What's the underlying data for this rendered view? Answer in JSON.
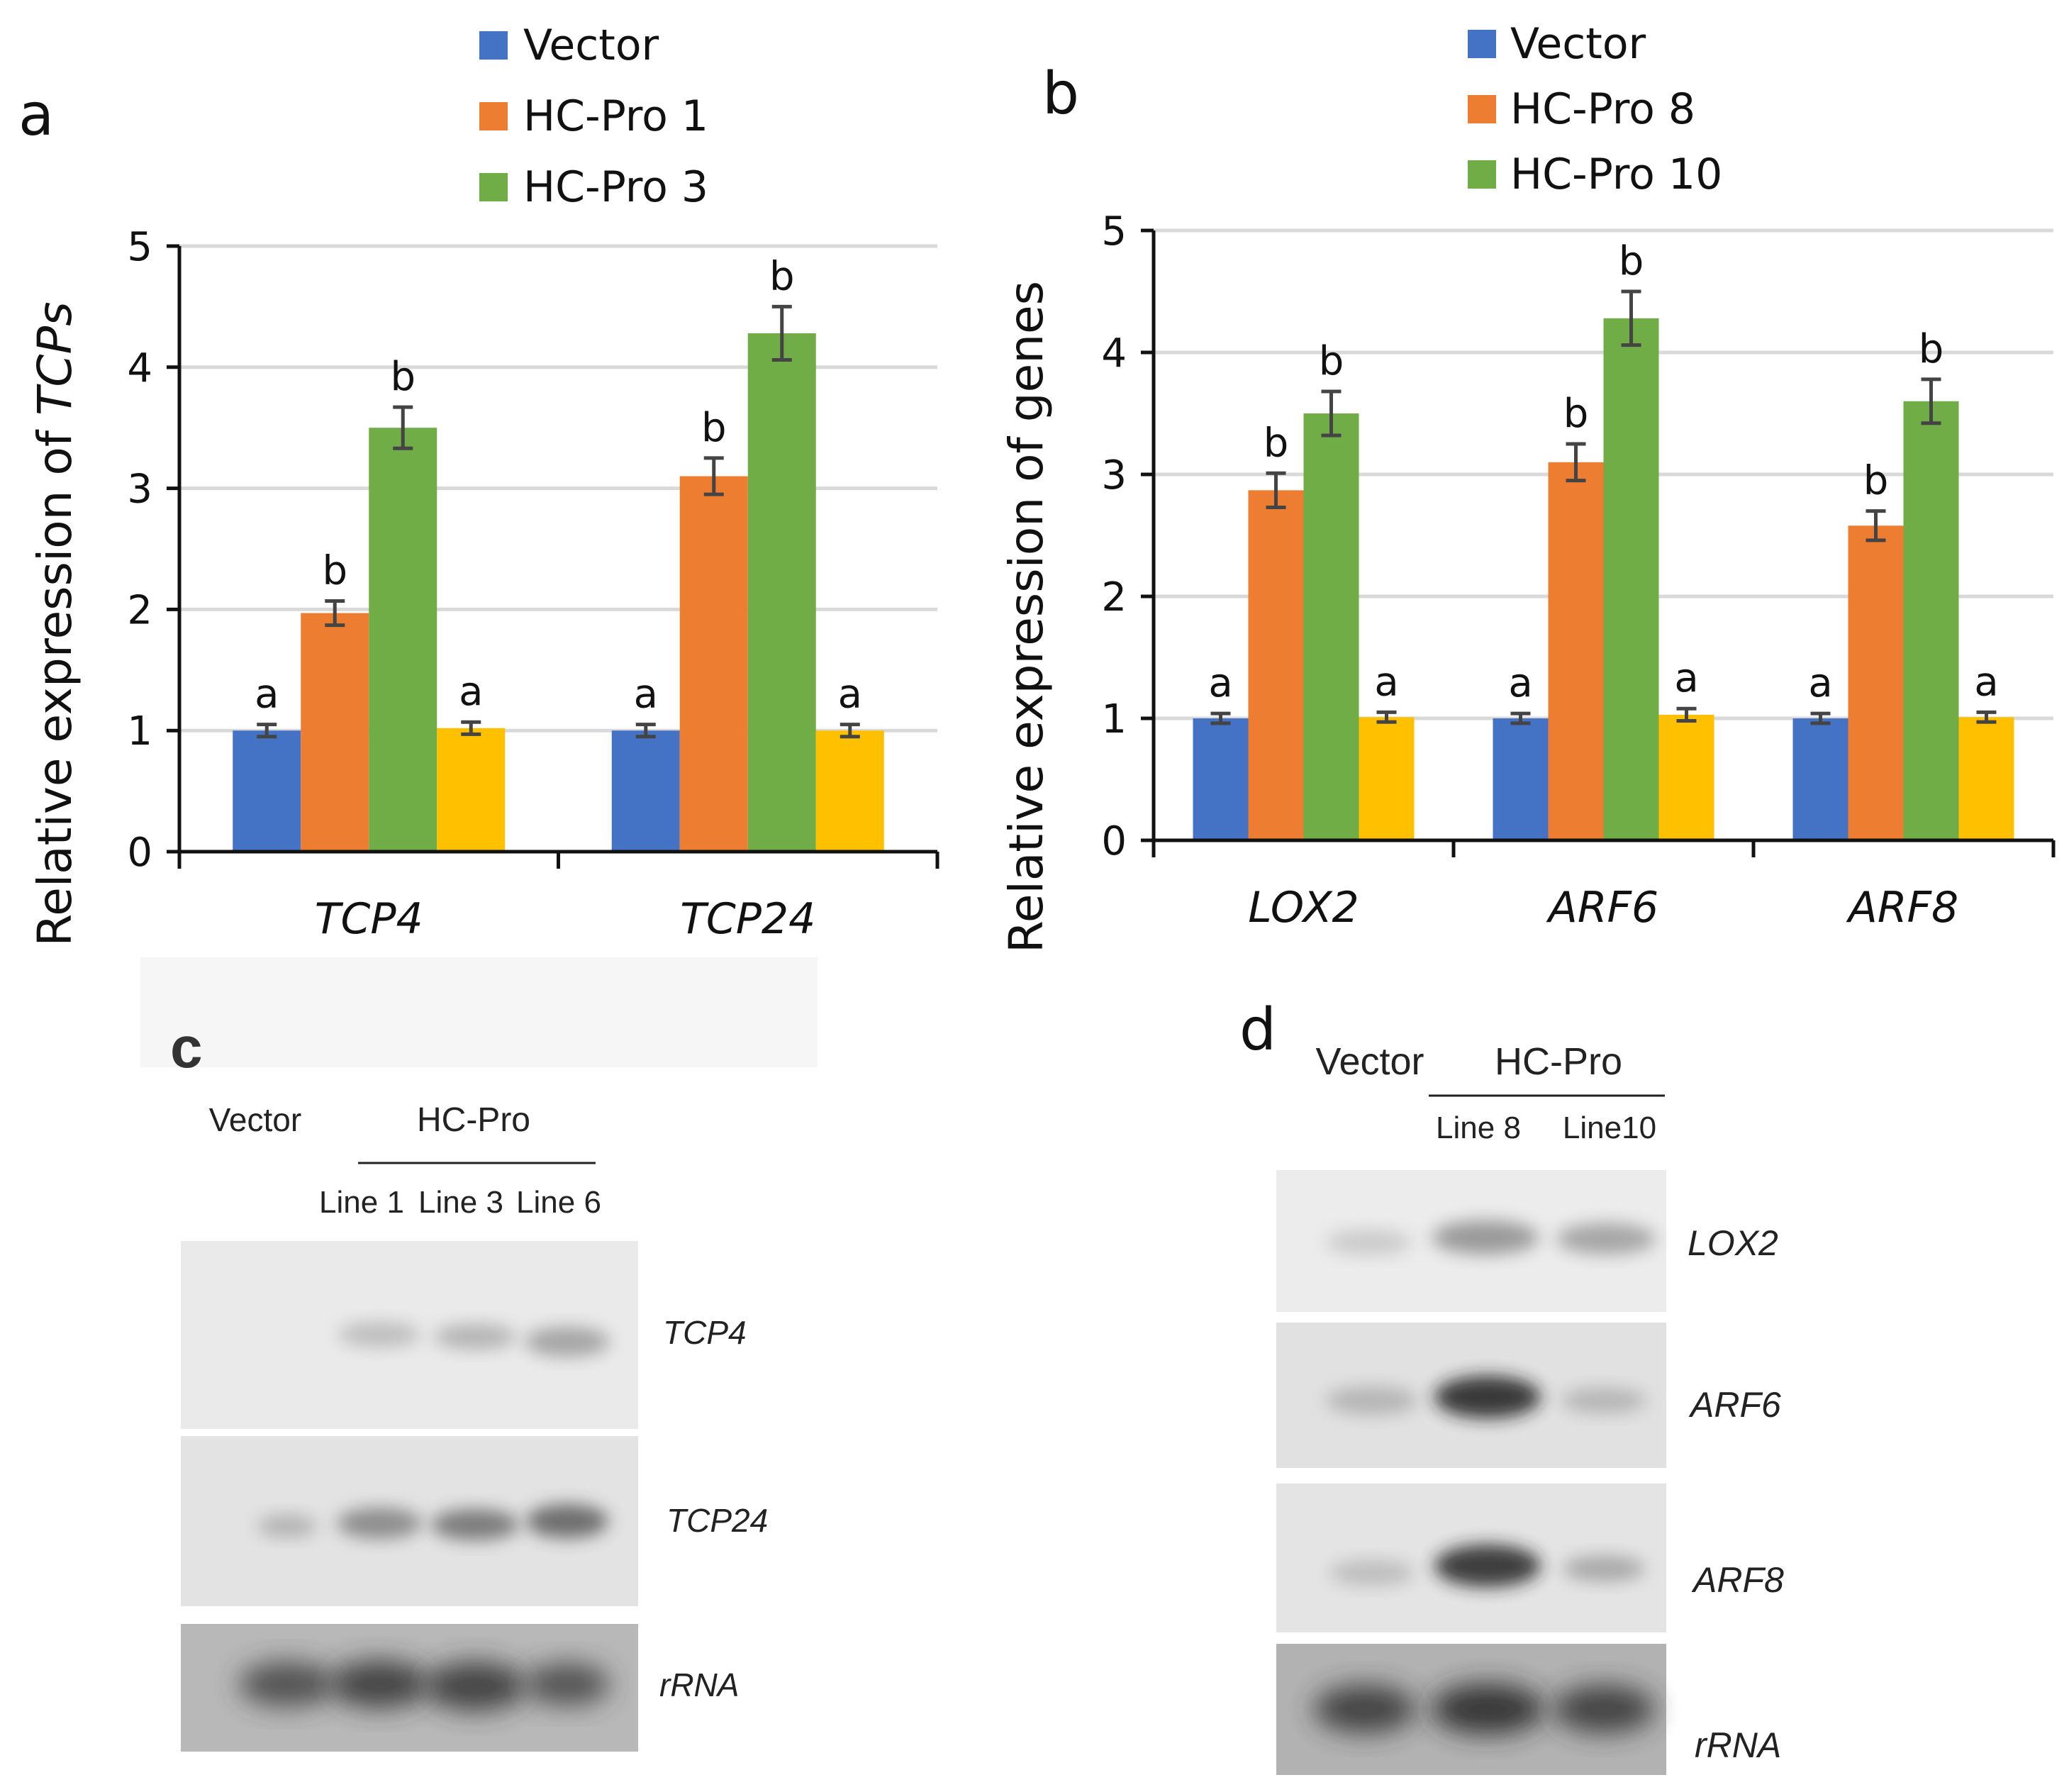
{
  "chart_data": [
    {
      "type": "bar",
      "panel": "a",
      "title": "",
      "xlabel": "",
      "ylabel": "Relative expression of TCPs",
      "ylabel_parts": [
        "Relative expression of ",
        "TCPs"
      ],
      "ylim": [
        0,
        5
      ],
      "yticks": [
        "0",
        "1",
        "2",
        "3",
        "4",
        "5"
      ],
      "grid": true,
      "categories": [
        "TCP4",
        "TCP24"
      ],
      "legend": [
        "Vector",
        "HC-Pro 1",
        "HC-Pro 3"
      ],
      "series": [
        {
          "name": "Vector",
          "color": "#4472C4",
          "values": [
            1.0,
            1.0
          ],
          "errors": [
            0.05,
            0.05
          ],
          "letters": [
            "a",
            "a"
          ]
        },
        {
          "name": "HC-Pro 1",
          "color": "#ED7D31",
          "values": [
            1.97,
            3.1
          ],
          "errors": [
            0.1,
            0.15
          ],
          "letters": [
            "b",
            "b"
          ]
        },
        {
          "name": "HC-Pro 3",
          "color": "#70AD47",
          "values": [
            3.5,
            4.28
          ],
          "errors": [
            0.17,
            0.22
          ],
          "letters": [
            "b",
            "b"
          ]
        },
        {
          "name": "",
          "color": "#FFC000",
          "values": [
            1.02,
            1.0
          ],
          "errors": [
            0.05,
            0.05
          ],
          "letters": [
            "a",
            "a"
          ]
        }
      ]
    },
    {
      "type": "bar",
      "panel": "b",
      "title": "",
      "xlabel": "",
      "ylabel": "Relative expression of genes",
      "ylim": [
        0,
        5
      ],
      "yticks": [
        "0",
        "1",
        "2",
        "3",
        "4",
        "5"
      ],
      "grid": true,
      "categories": [
        "LOX2",
        "ARF6",
        "ARF8"
      ],
      "legend": [
        "Vector",
        "HC-Pro 8",
        "HC-Pro 10"
      ],
      "series": [
        {
          "name": "Vector",
          "color": "#4472C4",
          "values": [
            1.0,
            1.0,
            1.0
          ],
          "errors": [
            0.04,
            0.04,
            0.04
          ],
          "letters": [
            "a",
            "a",
            "a"
          ]
        },
        {
          "name": "HC-Pro 8",
          "color": "#ED7D31",
          "values": [
            2.87,
            3.1,
            2.58
          ],
          "errors": [
            0.14,
            0.15,
            0.12
          ],
          "letters": [
            "b",
            "b",
            "b"
          ]
        },
        {
          "name": "HC-Pro 10",
          "color": "#70AD47",
          "values": [
            3.5,
            4.28,
            3.6
          ],
          "errors": [
            0.18,
            0.22,
            0.18
          ],
          "letters": [
            "b",
            "b",
            "b"
          ]
        },
        {
          "name": "",
          "color": "#FFC000",
          "values": [
            1.01,
            1.03,
            1.01
          ],
          "errors": [
            0.04,
            0.05,
            0.04
          ],
          "letters": [
            "a",
            "a",
            "a"
          ]
        }
      ]
    }
  ],
  "panels": {
    "a": "a",
    "b": "b",
    "c": "c",
    "d": "d"
  },
  "blot_c": {
    "vector_label": "Vector",
    "hcpro_label": "HC-Pro",
    "lanes": [
      "Line 1",
      "Line 3",
      "Line 6"
    ],
    "rows": [
      "TCP4",
      "TCP24",
      "rRNA"
    ]
  },
  "blot_d": {
    "vector_label": "Vector",
    "hcpro_label": "HC-Pro",
    "lanes": [
      "Line 8",
      "Line10"
    ],
    "rows": [
      "LOX2",
      "ARF6",
      "ARF8",
      "rRNA"
    ]
  }
}
